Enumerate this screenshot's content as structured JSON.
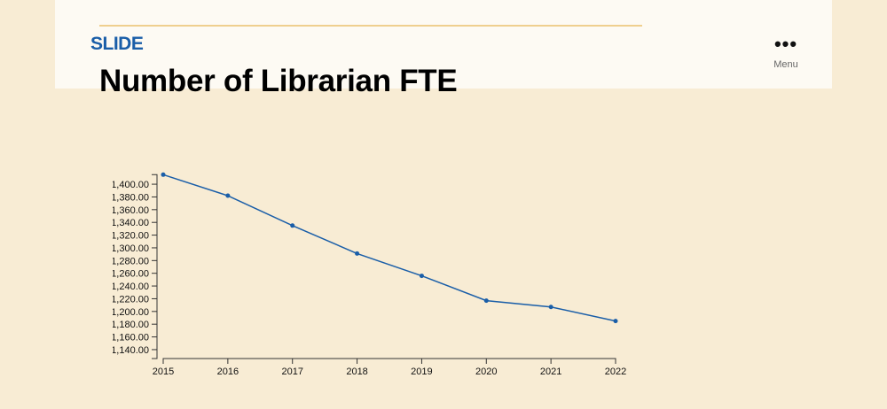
{
  "header": {
    "section_label": "SLIDE",
    "menu_label": "Menu",
    "menu_icon": "more-horizontal-icon"
  },
  "page_title": "Number of Librarian FTE",
  "colors": {
    "line": "#1a5ea8",
    "accent_rule": "#efcf8e",
    "section_label": "#1a5ea8",
    "background": "#f8ecd4"
  },
  "chart_data": {
    "type": "line",
    "title": "",
    "xlabel": "",
    "ylabel": "",
    "categories": [
      "2015",
      "2016",
      "2017",
      "2018",
      "2019",
      "2020",
      "2021",
      "2022"
    ],
    "values": [
      1415,
      1382,
      1335,
      1291,
      1256,
      1217,
      1207,
      1185
    ],
    "ylim": [
      1126,
      1415
    ],
    "yticks": [
      1140,
      1160,
      1180,
      1200,
      1220,
      1240,
      1260,
      1280,
      1300,
      1320,
      1340,
      1360,
      1380,
      1400
    ],
    "ytick_labels": [
      "1,140.00",
      "1,160.00",
      "1,180.00",
      "1,200.00",
      "1,220.00",
      "1,240.00",
      "1,260.00",
      "1,280.00",
      "1,300.00",
      "1,320.00",
      "1,340.00",
      "1,360.00",
      "1,380.00",
      "1,400.00"
    ],
    "grid": false,
    "legend": "none"
  }
}
